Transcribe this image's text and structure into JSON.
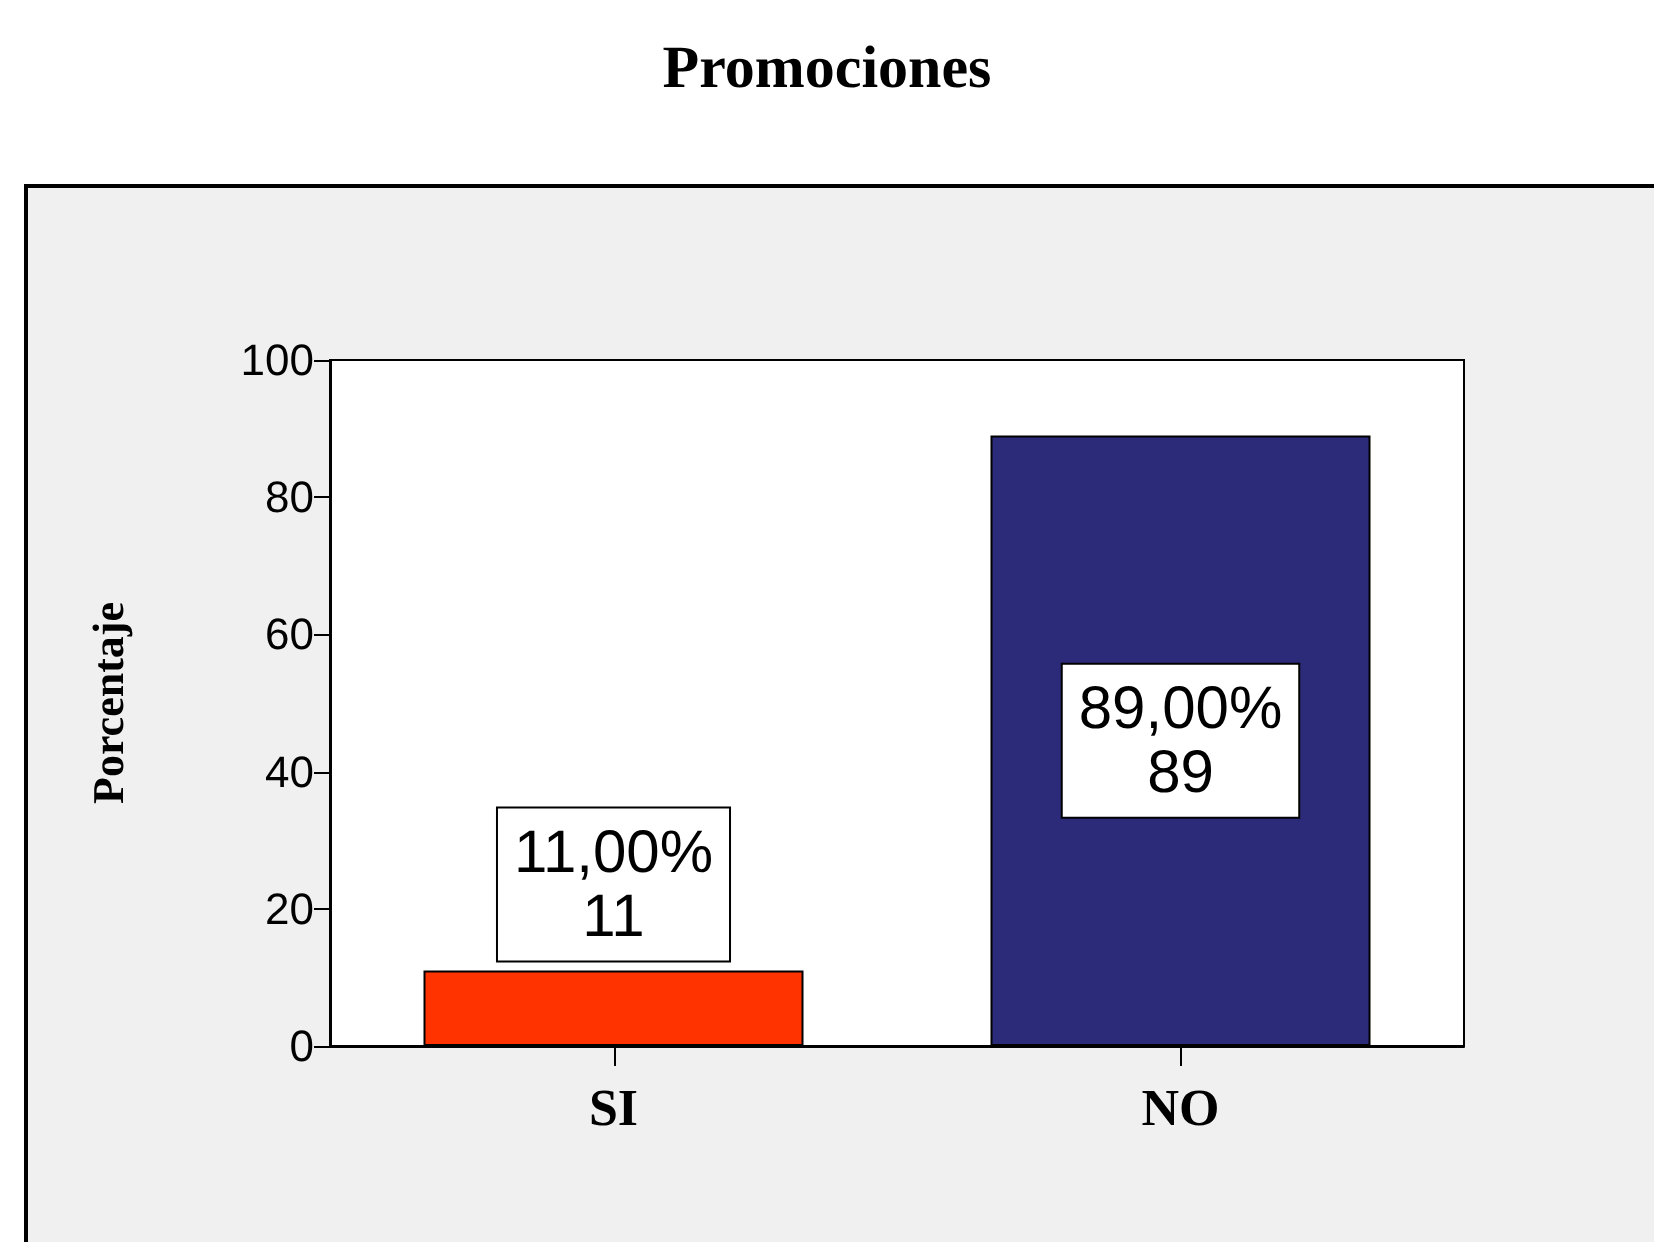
{
  "chart_data": {
    "type": "bar",
    "title": "Promociones",
    "ylabel": "Porcentaje",
    "categories": [
      "SI",
      "NO"
    ],
    "values": [
      11,
      89
    ],
    "colors": [
      "#ff3300",
      "#2b2b7a"
    ],
    "value_labels": [
      "11,00%\n11",
      "89,00%\n89"
    ],
    "ylim": [
      0,
      100
    ],
    "yticks": [
      0,
      20,
      40,
      60,
      80,
      100
    ],
    "grid": false
  }
}
